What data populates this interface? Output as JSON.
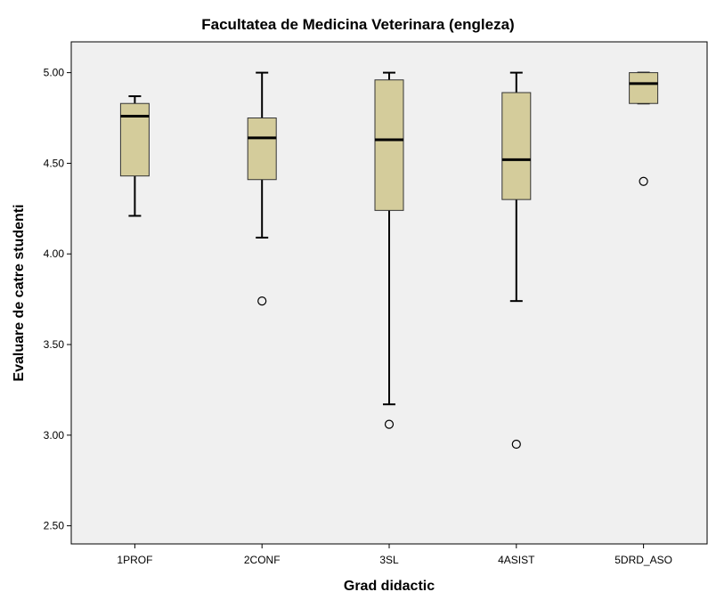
{
  "chart_data": {
    "type": "box",
    "title": "Facultatea de Medicina Veterinara (engleza)",
    "xlabel": "Grad didactic",
    "ylabel": "Evaluare de catre studenti",
    "ylim": [
      2.4,
      5.17
    ],
    "yticks": [
      {
        "value": 2.5,
        "label": "2.50"
      },
      {
        "value": 3.0,
        "label": "3.00"
      },
      {
        "value": 3.5,
        "label": "3.50"
      },
      {
        "value": 4.0,
        "label": "4.00"
      },
      {
        "value": 4.5,
        "label": "4.50"
      },
      {
        "value": 5.0,
        "label": "5.00"
      }
    ],
    "grid": false,
    "box_color": "#d4cc9b",
    "plot_background": "#f0f0f0",
    "categories": [
      "1PROF",
      "2CONF",
      "3SL",
      "4ASIST",
      "5DRD_ASO"
    ],
    "boxes": [
      {
        "category": "1PROF",
        "whisker_low": 4.21,
        "q1": 4.43,
        "median": 4.76,
        "q3": 4.83,
        "whisker_high": 4.87,
        "outliers": []
      },
      {
        "category": "2CONF",
        "whisker_low": 4.09,
        "q1": 4.41,
        "median": 4.64,
        "q3": 4.75,
        "whisker_high": 5.0,
        "outliers": [
          3.74
        ]
      },
      {
        "category": "3SL",
        "whisker_low": 3.17,
        "q1": 4.24,
        "median": 4.63,
        "q3": 4.96,
        "whisker_high": 5.0,
        "outliers": [
          3.06
        ]
      },
      {
        "category": "4ASIST",
        "whisker_low": 3.74,
        "q1": 4.3,
        "median": 4.52,
        "q3": 4.89,
        "whisker_high": 5.0,
        "outliers": [
          2.95
        ]
      },
      {
        "category": "5DRD_ASO",
        "whisker_low": 4.83,
        "q1": 4.83,
        "median": 4.94,
        "q3": 5.0,
        "whisker_high": 5.0,
        "outliers": [
          4.4
        ]
      }
    ]
  }
}
